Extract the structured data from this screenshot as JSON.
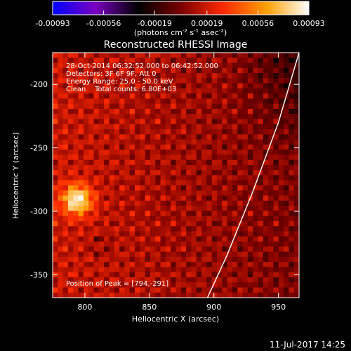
{
  "chart_data": {
    "type": "heatmap",
    "title": "Reconstructed RHESSI Image",
    "xlabel": "Heliocentric X (arcsec)",
    "ylabel": "Heliocentric Y (arcsec)",
    "xlim": [
      775,
      966
    ],
    "ylim": [
      -368,
      -175
    ],
    "xticks": [
      800,
      850,
      900,
      950
    ],
    "yticks": [
      -200,
      -250,
      -300,
      -350
    ],
    "colorbar": {
      "label_html": "(photons cm<tspan baseline-shift=\"super\" font-size=\"7\">-2</tspan> s<tspan baseline-shift=\"super\" font-size=\"7\">-1</tspan> asec<tspan baseline-shift=\"super\" font-size=\"7\">-2</tspan>)",
      "label": "(photons cm-2 s-1 asec-2)",
      "min": -0.00093,
      "max": 0.00093,
      "ticks": [
        {
          "value": -0.00093,
          "label": "-0.00093"
        },
        {
          "value": -0.00056,
          "label": "-0.00056"
        },
        {
          "value": -0.00019,
          "label": "-0.00019"
        },
        {
          "value": 0.00019,
          "label": "0.00019"
        },
        {
          "value": 0.00056,
          "label": "0.00056"
        },
        {
          "value": 0.00093,
          "label": "0.00093"
        }
      ],
      "stops": [
        "#0000ff",
        "#7a00c0",
        "#000000",
        "#7a0000",
        "#ff2a00",
        "#ffa000",
        "#ffffff"
      ]
    },
    "annotations": [
      "28-Oct-2014 06:32:52.000 to 06:42:52.000",
      "Detectors: 3F 6F 9F, Att 0",
      "Energy Range: 25.0 - 50.0 keV",
      "Clean    Total counts: 6.80E+03"
    ],
    "peak_label": "Position of Peak = [794,-291]",
    "peak": {
      "x": 794,
      "y": -291
    },
    "limb": [
      [
        895,
        -368
      ],
      [
        910,
        -335
      ],
      [
        930,
        -285
      ],
      [
        950,
        -230
      ],
      [
        966,
        -175
      ]
    ]
  },
  "footer": {
    "date": "11-Jul-2017 14:25"
  }
}
